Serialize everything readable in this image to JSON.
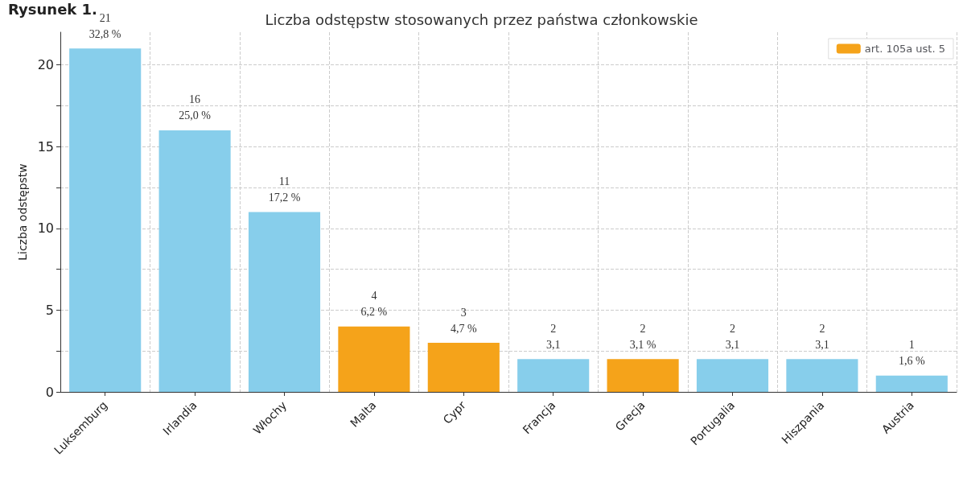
{
  "chart_data": {
    "type": "bar",
    "title": "Liczba odstępstw stosowanych przez państwa członkowskie",
    "ylabel": "Liczba odstępstw",
    "annotations": [
      "Rysunek 1."
    ],
    "categories": [
      "Luksemburg",
      "Irlandia",
      "Włochy",
      "Malta",
      "Cypr",
      "Francja",
      "Grecja",
      "Portugalia",
      "Hiszpania",
      "Austria"
    ],
    "series": [
      {
        "color": "#87ceeb",
        "values": [
          21,
          16,
          11,
          null,
          null,
          2,
          null,
          2,
          2,
          1
        ],
        "value_labels": [
          "21\n32,8 %",
          "16\n25,0 %",
          "11\n17,2 %",
          null,
          null,
          "2\n3,1",
          null,
          "2\n3,1",
          "2\n3,1",
          "1\n1,6 %"
        ]
      },
      {
        "name": "art. 105a ust. 5",
        "color": "#f5a31a",
        "values": [
          null,
          null,
          null,
          4,
          3,
          null,
          2,
          null,
          null,
          null
        ],
        "value_labels": [
          null,
          null,
          null,
          "4\n6,2 %",
          "3\n4,7 %",
          null,
          "2\n3,1 %",
          null,
          null,
          null
        ]
      }
    ],
    "ylim": [
      0,
      22
    ],
    "yticks": [
      0,
      {
        "value": 2.5,
        "label": null
      },
      5,
      {
        "value": 7.5,
        "label": null
      },
      10,
      {
        "value": 12.5,
        "label": null
      },
      15,
      {
        "value": 17.5,
        "label": null
      },
      20
    ],
    "grid": true,
    "legend": "top right"
  }
}
